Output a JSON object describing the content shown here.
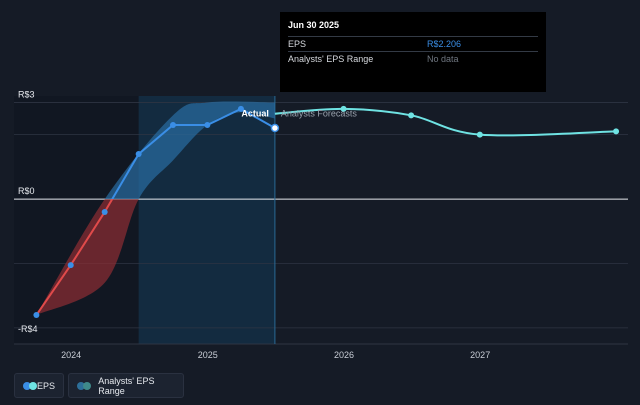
{
  "chart_data": {
    "type": "line",
    "y_ticks": [
      {
        "label": "R$3",
        "value": 3
      },
      {
        "label": "R$0",
        "value": 0
      },
      {
        "label": "-R$4",
        "value": -4
      }
    ],
    "x_ticks": [
      "2024",
      "2025",
      "2026",
      "2027"
    ],
    "ylim": [
      -4.5,
      3.2
    ],
    "x_range": [
      "2023-08-01",
      "2028-02-01"
    ],
    "series": [
      {
        "name": "EPS",
        "color": "#3a8ee6",
        "points": [
          {
            "x": "2023-09-30",
            "y": -3.6
          },
          {
            "x": "2023-12-31",
            "y": -2.05
          },
          {
            "x": "2024-03-31",
            "y": -0.4
          },
          {
            "x": "2024-06-30",
            "y": 1.4
          },
          {
            "x": "2024-09-30",
            "y": 2.3
          },
          {
            "x": "2024-12-31",
            "y": 2.3
          },
          {
            "x": "2025-03-31",
            "y": 2.8
          },
          {
            "x": "2025-06-30",
            "y": 2.206
          }
        ]
      },
      {
        "name": "Analysts' Forecasts",
        "color": "#6fe3e3",
        "points": [
          {
            "x": "2025-06-30",
            "y": 2.65
          },
          {
            "x": "2025-12-31",
            "y": 2.8
          },
          {
            "x": "2026-06-30",
            "y": 2.6
          },
          {
            "x": "2026-12-31",
            "y": 2.0
          },
          {
            "x": "2027-12-31",
            "y": 2.1
          }
        ]
      }
    ],
    "range_band": {
      "name": "Analysts' EPS Range",
      "upper": [
        {
          "x": "2023-09-30",
          "y": -3.6
        },
        {
          "x": "2024-03-31",
          "y": 0.0
        },
        {
          "x": "2024-09-30",
          "y": 2.6
        },
        {
          "x": "2024-12-31",
          "y": 3.0
        },
        {
          "x": "2025-06-30",
          "y": 3.0
        }
      ],
      "lower": [
        {
          "x": "2025-06-30",
          "y": 2.5
        },
        {
          "x": "2025-03-31",
          "y": 2.7
        },
        {
          "x": "2024-12-31",
          "y": 2.3
        },
        {
          "x": "2024-09-30",
          "y": 1.2
        },
        {
          "x": "2024-06-30",
          "y": 0.0
        },
        {
          "x": "2024-03-31",
          "y": -2.6
        },
        {
          "x": "2023-09-30",
          "y": -3.6
        }
      ]
    },
    "annotations": {
      "actual_label": "Actual",
      "forecast_label": "Analysts Forecasts",
      "divider_x": "2025-06-30",
      "past_shade_start": "2024-06-30"
    },
    "grid": "horizontal"
  },
  "tooltip": {
    "date": "Jun 30 2025",
    "rows": [
      {
        "label": "EPS",
        "value": "R$2.206"
      },
      {
        "label": "Analysts' EPS Range",
        "value": "No data"
      }
    ]
  },
  "legend": [
    {
      "label": "EPS",
      "colors": [
        "#3a8ee6",
        "#6fe3e3"
      ]
    },
    {
      "label": "Analysts' EPS Range",
      "colors": [
        "#2d6f99",
        "#3f8a8a"
      ]
    }
  ]
}
